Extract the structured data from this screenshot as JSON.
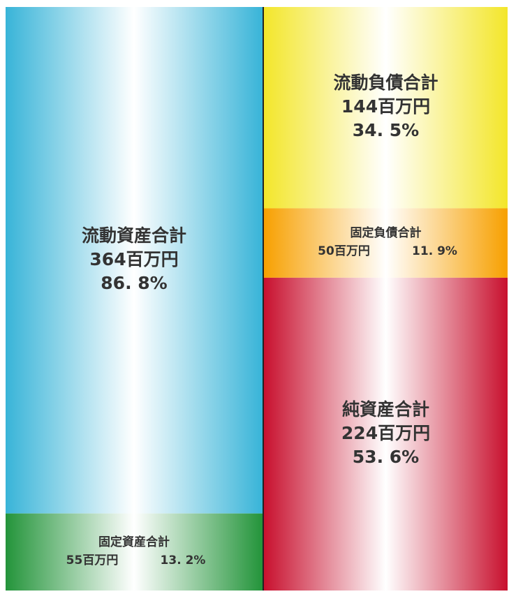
{
  "chart_data": {
    "type": "balance_sheet",
    "columns": [
      {
        "segments": [
          {
            "name": "流動資産合計",
            "value": 364,
            "value_label": "364百万円",
            "percent": 86.8,
            "percent_label": "86. 8%",
            "color": "#38b4d8"
          },
          {
            "name": "固定資産合計",
            "value": 55,
            "value_label": "55百万円",
            "percent": 13.2,
            "percent_label": "13. 2%",
            "color": "#23943a"
          }
        ]
      },
      {
        "segments": [
          {
            "name": "流動負債合計",
            "value": 144,
            "value_label": "144百万円",
            "percent": 34.5,
            "percent_label": "34. 5%",
            "color": "#f3e62a"
          },
          {
            "name": "固定負債合計",
            "value": 50,
            "value_label": "50百万円",
            "percent": 11.9,
            "percent_label": "11. 9%",
            "color": "#f7a000"
          },
          {
            "name": "純資産合計",
            "value": 224,
            "value_label": "224百万円",
            "percent": 53.6,
            "percent_label": "53. 6%",
            "color": "#c8102e"
          }
        ]
      }
    ]
  }
}
